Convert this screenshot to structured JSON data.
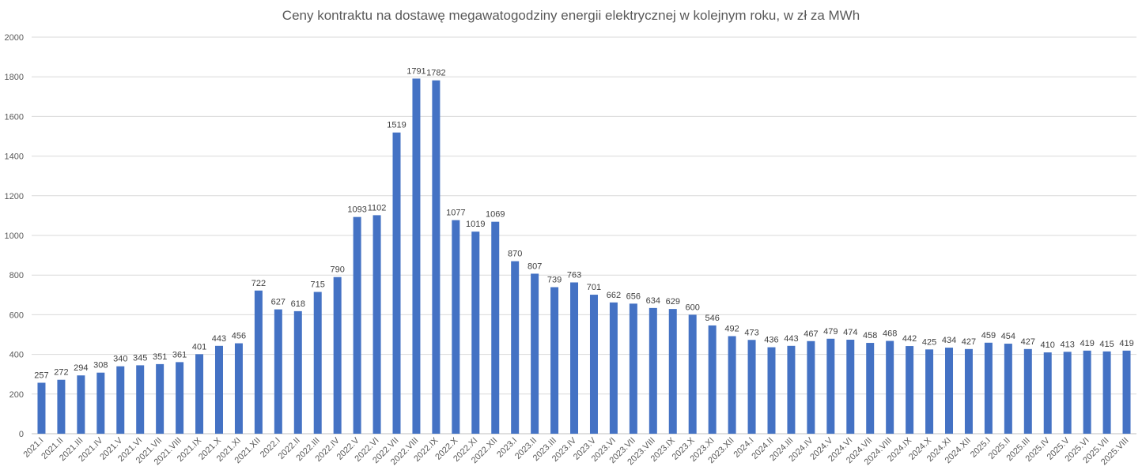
{
  "chart_data": {
    "type": "bar",
    "title": "Ceny kontraktu na dostawę megawatogodziny energii elektrycznej w kolejnym roku, w zł za MWh",
    "xlabel": "",
    "ylabel": "",
    "ylim": [
      0,
      2000
    ],
    "yticks": [
      0,
      200,
      400,
      600,
      800,
      1000,
      1200,
      1400,
      1600,
      1800,
      2000
    ],
    "grid": true,
    "legend": "none",
    "bar_color": "#4472C4",
    "categories": [
      "2021.I",
      "2021.II",
      "2021.III",
      "2021.IV",
      "2021.V",
      "2021.VI",
      "2021.VII",
      "2021.VIII",
      "2021.IX",
      "2021.X",
      "2021.XI",
      "2021.XII",
      "2022.I",
      "2022.II",
      "2022.III",
      "2022.IV",
      "2022.V",
      "2022.VI",
      "2022.VII",
      "2022.VIII",
      "2022.IX",
      "2022.X",
      "2022.XI",
      "2022.XII",
      "2023.I",
      "2023.II",
      "2023.III",
      "2023.IV",
      "2023.V",
      "2023.VI",
      "2023.VII",
      "2023.VIII",
      "2023.IX",
      "2023.X",
      "2023.XI",
      "2023.XII",
      "2024.I",
      "2024.II",
      "2024.III",
      "2024.IV",
      "2024.V",
      "2024.VI",
      "2024.VII",
      "2024.VIII",
      "2024.IX",
      "2024.X",
      "2024.XI",
      "2024.XII",
      "2025.I",
      "2025.II",
      "2025.III",
      "2025.IV",
      "2025.V",
      "2025.VI",
      "2025.VII",
      "2025.VIII"
    ],
    "values": [
      257,
      272,
      294,
      308,
      340,
      345,
      351,
      361,
      401,
      443,
      456,
      722,
      627,
      618,
      715,
      790,
      1093,
      1102,
      1519,
      1791,
      1782,
      1077,
      1019,
      1069,
      870,
      807,
      739,
      763,
      701,
      662,
      656,
      634,
      629,
      600,
      546,
      492,
      473,
      436,
      443,
      467,
      479,
      474,
      458,
      468,
      442,
      425,
      434,
      427,
      459,
      454,
      427,
      410,
      413,
      419,
      415,
      419
    ]
  }
}
